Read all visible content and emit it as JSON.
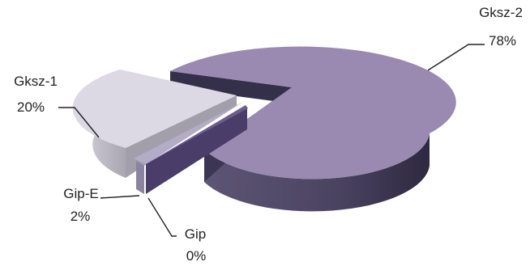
{
  "chart_data": {
    "type": "pie",
    "style": "3d-exploded",
    "slices": [
      {
        "name": "Gksz-2",
        "percent_label": "78%",
        "value": 78,
        "color": "#9a8ab2"
      },
      {
        "name": "Gksz-1",
        "percent_label": "20%",
        "value": 20,
        "color": "#dcd8e4"
      },
      {
        "name": "Gip-E",
        "percent_label": "2%",
        "value": 2,
        "color": "#b3acc6"
      },
      {
        "name": "Gip",
        "percent_label": "0%",
        "value": 0,
        "color": "#4a3d6a"
      }
    ],
    "legend": "none",
    "title": ""
  }
}
